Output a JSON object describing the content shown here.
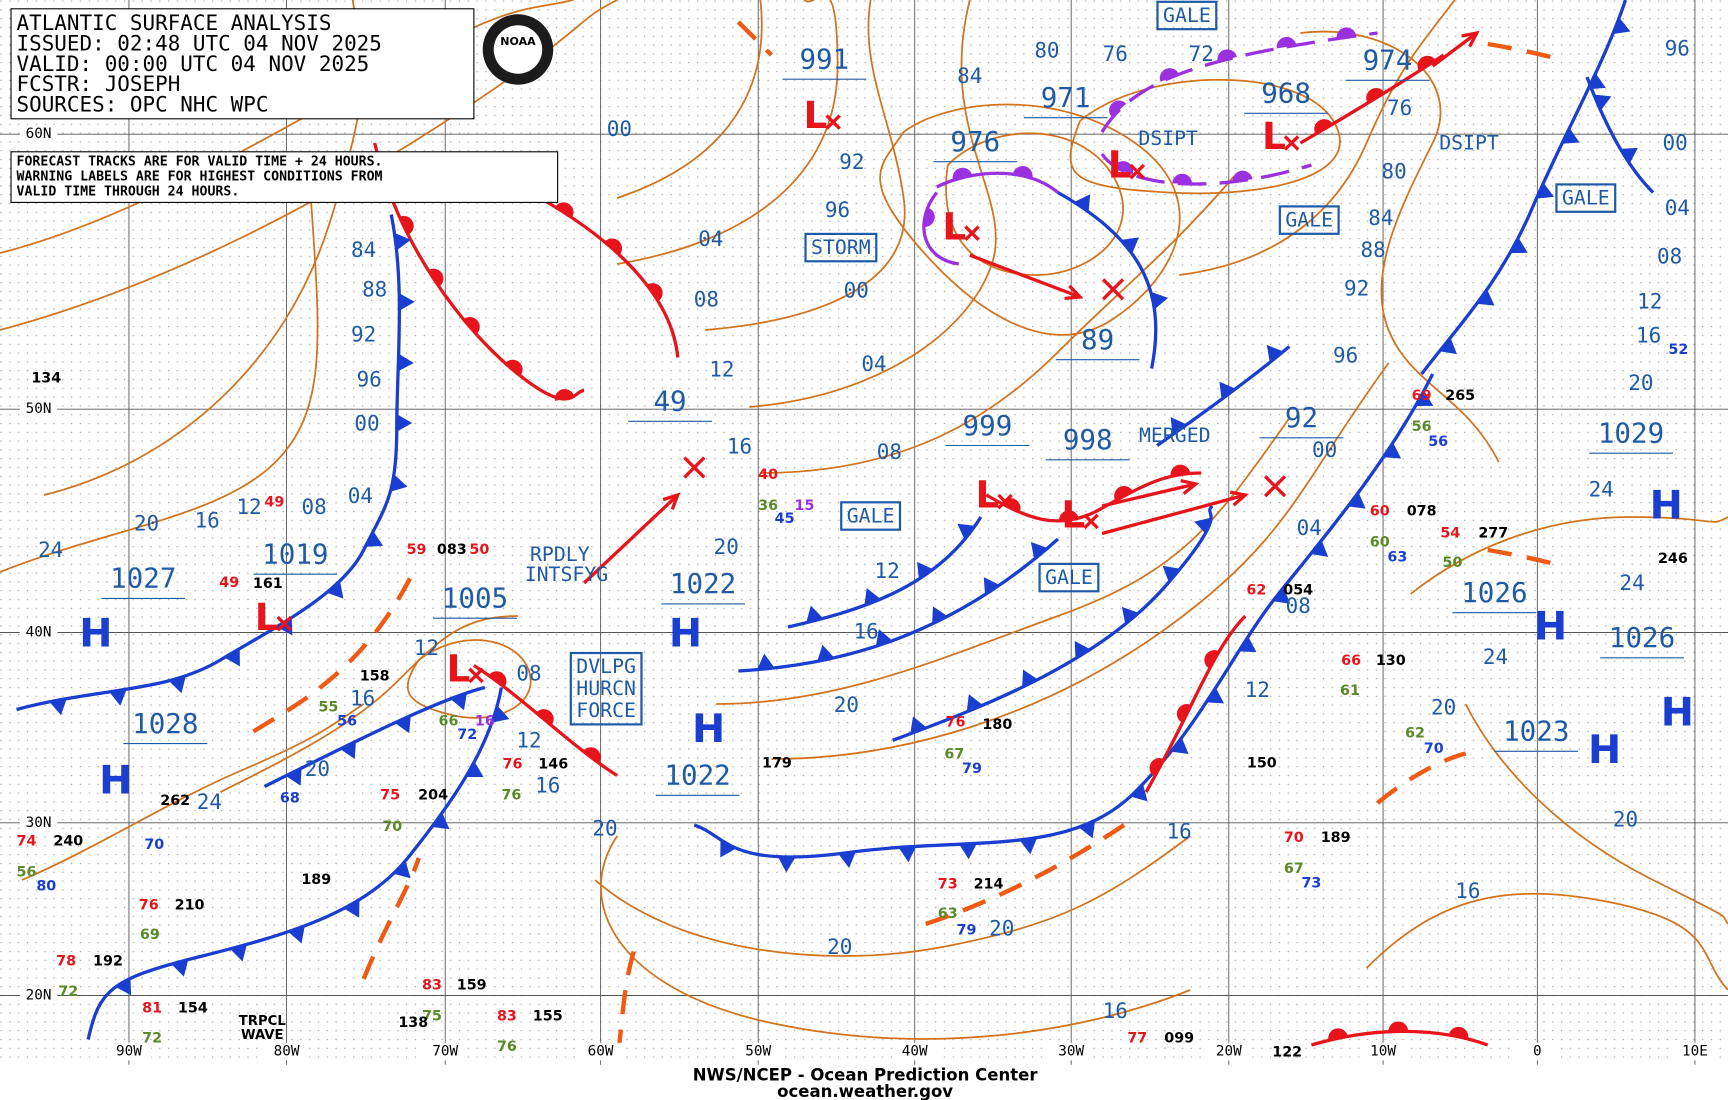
{
  "header": {
    "lines": [
      "ATLANTIC SURFACE ANALYSIS",
      "ISSUED: 02:48 UTC 04 NOV 2025",
      "VALID:  00:00 UTC 04 NOV 2025",
      "FCSTR:  JOSEPH",
      "SOURCES: OPC NHC WPC"
    ],
    "logo_text": "NOAA"
  },
  "note": [
    "FORECAST TRACKS ARE FOR VALID TIME + 24 HOURS.",
    "WARNING LABELS ARE FOR HIGHEST CONDITIONS FROM",
    "VALID TIME THROUGH 24 HOURS."
  ],
  "lat_labels": [
    "60N",
    "50N",
    "40N",
    "30N",
    "20N"
  ],
  "lon_labels": [
    "90W",
    "80W",
    "70W",
    "60W",
    "50W",
    "40W",
    "30W",
    "20W",
    "10W",
    "0",
    "10E"
  ],
  "isobar_labels": [
    "00",
    "84",
    "80",
    "76",
    "72",
    "92",
    "96",
    "00",
    "04",
    "08",
    "12",
    "04",
    "08",
    "12",
    "16",
    "20",
    "16",
    "20",
    "20",
    "20",
    "16",
    "16",
    "20",
    "84",
    "88",
    "92",
    "96",
    "00",
    "04",
    "08",
    "12",
    "16",
    "20",
    "24",
    "24",
    "20",
    "16",
    "12",
    "08",
    "12",
    "16",
    "80",
    "84",
    "88",
    "92",
    "96",
    "00",
    "04",
    "08",
    "12",
    "76",
    "00",
    "04",
    "08",
    "12",
    "16",
    "20",
    "24",
    "24",
    "24",
    "20",
    "20",
    "16",
    "96"
  ],
  "pressures": [
    "991",
    "976",
    "971",
    "968",
    "974",
    "89",
    "49",
    "999",
    "998",
    "92",
    "1029",
    "1019",
    "1027",
    "1005",
    "1022",
    "1022",
    "1028",
    "1026",
    "1026",
    "1023"
  ],
  "highs": [
    "H",
    "H",
    "H",
    "H",
    "H",
    "H",
    "H",
    "H"
  ],
  "lows": [
    "L",
    "L",
    "L",
    "L",
    "L",
    "L",
    "L",
    "L"
  ],
  "warnings": [
    "GALE",
    "STORM",
    "GALE",
    "GALE",
    "GALE",
    "GALE",
    "DVLPG",
    "HURCN",
    "FORCE"
  ],
  "remarks": [
    "DSIPT",
    "DSIPT",
    "MERGED",
    "RPDLY",
    "INTSFYG",
    "TRPCL",
    "WAVE"
  ],
  "stations": [
    "134",
    "49",
    "161",
    "49",
    "59",
    "083",
    "50",
    "158",
    "55",
    "56",
    "66",
    "72",
    "16",
    "76",
    "76",
    "146",
    "75",
    "204",
    "70",
    "68",
    "40",
    "36",
    "45",
    "15",
    "179",
    "180",
    "76",
    "67",
    "79",
    "73",
    "214",
    "63",
    "79",
    "150",
    "62",
    "054",
    "70",
    "189",
    "67",
    "73",
    "130",
    "66",
    "61",
    "60",
    "078",
    "60",
    "63",
    "54",
    "277",
    "50",
    "69",
    "265",
    "56",
    "56",
    "246",
    "52",
    "62",
    "70",
    "262",
    "70",
    "74",
    "240",
    "56",
    "80",
    "76",
    "210",
    "69",
    "189",
    "78",
    "192",
    "72",
    "81",
    "154",
    "72",
    "83",
    "159",
    "75",
    "138",
    "83",
    "155",
    "76",
    "77",
    "099",
    "122"
  ],
  "footer": [
    "NWS/NCEP - Ocean Prediction Center",
    "ocean.weather.gov"
  ],
  "colors": {
    "isobar": "#d2731e",
    "cold": "#1a3fd0",
    "warm": "#e8141c",
    "occluded": "#9b30e0",
    "trough": "#f05a14",
    "grid": "#555555",
    "label": "#1f5aa6",
    "temperature": "#e8141c",
    "dewpoint": "#5a8a28",
    "pressure_station": "#000000",
    "visibility": "#1a3fd0",
    "weather": "#9b30e0"
  }
}
